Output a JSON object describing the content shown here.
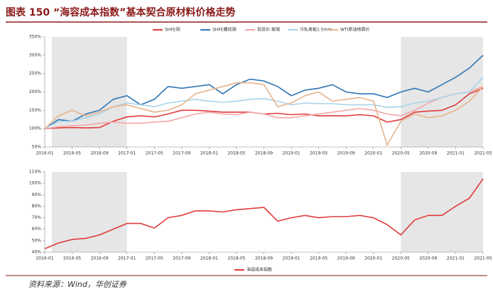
{
  "title": "图表 150 “海容成本指数”基本契合原材料价格走势",
  "source": "资料来源：Wind，华创证券",
  "chart_data": [
    {
      "type": "line",
      "categories": [
        "2016-01",
        "2016-03",
        "2016-05",
        "2016-07",
        "2016-09",
        "2016-11",
        "2017-01",
        "2017-03",
        "2017-05",
        "2017-07",
        "2017-09",
        "2017-11",
        "2018-01",
        "2018-03",
        "2018-05",
        "2018-07",
        "2018-09",
        "2018-11",
        "2019-01",
        "2019-03",
        "2019-05",
        "2019-07",
        "2019-09",
        "2019-11",
        "2020-01",
        "2020-03",
        "2020-05",
        "2020-07",
        "2020-09",
        "2020-11",
        "2021-01",
        "2021-03",
        "2021-05"
      ],
      "xticks": [
        "2016-01",
        "2016-05",
        "2016-09",
        "2017-01",
        "2017-05",
        "2017-09",
        "2018-01",
        "2018-05",
        "2018-09",
        "2019-01",
        "2019-05",
        "2019-09",
        "2020-01",
        "2020-05",
        "2020-09",
        "2021-01",
        "2021-05"
      ],
      "highlight": [
        [
          "2016-01",
          "2017-01"
        ],
        [
          "2020-05",
          "2021-05"
        ]
      ],
      "ylim": [
        50,
        350
      ],
      "yticks": [
        {
          "value": 50,
          "label": "50%"
        },
        {
          "value": 100,
          "label": "100%"
        },
        {
          "value": 150,
          "label": "150%"
        },
        {
          "value": 200,
          "label": "200%"
        },
        {
          "value": 250,
          "label": "250%"
        },
        {
          "value": 300,
          "label": "300%"
        },
        {
          "value": 350,
          "label": "350%"
        }
      ],
      "series": [
        {
          "name": "SHFE铜",
          "color": "#e03c3c",
          "values": [
            100,
            102,
            103,
            102,
            103,
            120,
            132,
            135,
            132,
            140,
            150,
            150,
            148,
            145,
            145,
            145,
            140,
            142,
            138,
            140,
            135,
            135,
            135,
            138,
            135,
            118,
            125,
            145,
            148,
            150,
            165,
            195,
            210
          ]
        },
        {
          "name": "SHFE螺纹钢",
          "color": "#2e75b6",
          "values": [
            100,
            125,
            120,
            140,
            150,
            180,
            190,
            165,
            180,
            215,
            210,
            215,
            220,
            195,
            220,
            235,
            230,
            215,
            190,
            205,
            210,
            220,
            200,
            195,
            195,
            185,
            200,
            210,
            200,
            220,
            240,
            265,
            300
          ]
        },
        {
          "name": "现货价:玻璃",
          "color": "#f4a6a6",
          "values": [
            100,
            105,
            108,
            110,
            115,
            118,
            115,
            115,
            118,
            120,
            130,
            140,
            145,
            140,
            138,
            145,
            140,
            130,
            130,
            135,
            140,
            145,
            150,
            155,
            150,
            140,
            135,
            150,
            170,
            185,
            195,
            200,
            215
          ]
        },
        {
          "name": "冷轧卷板1.5mm",
          "color": "#a9d3ea",
          "values": [
            100,
            120,
            120,
            130,
            140,
            160,
            170,
            165,
            160,
            170,
            175,
            180,
            175,
            172,
            175,
            180,
            182,
            175,
            165,
            170,
            168,
            168,
            165,
            165,
            165,
            158,
            160,
            170,
            175,
            185,
            195,
            200,
            240
          ]
        },
        {
          "name": "WTI原油结算价",
          "color": "#e8b48a",
          "values": [
            100,
            135,
            150,
            135,
            145,
            160,
            165,
            155,
            145,
            150,
            165,
            195,
            205,
            215,
            225,
            225,
            220,
            160,
            170,
            190,
            200,
            175,
            180,
            185,
            175,
            55,
            120,
            140,
            130,
            135,
            150,
            175,
            215
          ]
        }
      ]
    },
    {
      "type": "line",
      "categories": [
        "2016-01",
        "2016-03",
        "2016-05",
        "2016-07",
        "2016-09",
        "2016-11",
        "2017-01",
        "2017-03",
        "2017-05",
        "2017-07",
        "2017-09",
        "2017-11",
        "2018-01",
        "2018-03",
        "2018-05",
        "2018-07",
        "2018-09",
        "2018-11",
        "2019-01",
        "2019-03",
        "2019-05",
        "2019-07",
        "2019-09",
        "2019-11",
        "2020-01",
        "2020-03",
        "2020-05",
        "2020-07",
        "2020-09",
        "2020-11",
        "2021-01",
        "2021-03",
        "2021-05"
      ],
      "xticks": [
        "2016-01",
        "2016-05",
        "2016-09",
        "2017-01",
        "2017-05",
        "2017-09",
        "2018-01",
        "2018-05",
        "2018-09",
        "2019-01",
        "2019-05",
        "2019-09",
        "2020-01",
        "2020-05",
        "2020-09",
        "2021-01",
        "2021-05"
      ],
      "highlight": [
        [
          "2016-01",
          "2017-01"
        ],
        [
          "2020-05",
          "2021-05"
        ]
      ],
      "ylim": [
        40,
        110
      ],
      "yticks": [
        {
          "value": 40,
          "label": "40%"
        },
        {
          "value": 50,
          "label": "50%"
        },
        {
          "value": 60,
          "label": "60%"
        },
        {
          "value": 70,
          "label": "70%"
        },
        {
          "value": 80,
          "label": "80%"
        },
        {
          "value": 90,
          "label": "90%"
        },
        {
          "value": 100,
          "label": "100%"
        },
        {
          "value": 110,
          "label": "110%"
        }
      ],
      "series": [
        {
          "name": "海容成本指数",
          "color": "#e03c3c",
          "values": [
            43,
            48,
            51,
            52,
            55,
            60,
            65,
            65,
            61,
            70,
            72,
            76,
            76,
            75,
            77,
            78,
            79,
            67,
            70,
            72,
            70,
            71,
            71,
            72,
            70,
            64,
            55,
            68,
            72,
            72,
            80,
            87,
            104
          ]
        }
      ]
    }
  ]
}
